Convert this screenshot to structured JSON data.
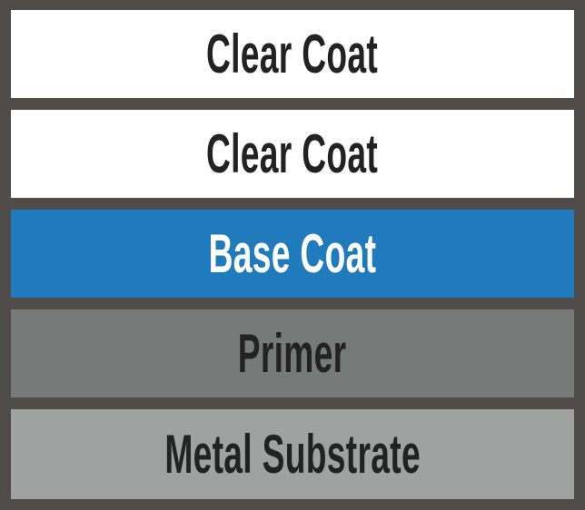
{
  "layers": [
    {
      "label": "Clear Coat",
      "bg": "#ffffff",
      "fg": "#222222"
    },
    {
      "label": "Clear Coat",
      "bg": "#ffffff",
      "fg": "#222222"
    },
    {
      "label": "Base Coat",
      "bg": "#1f7bbb",
      "fg": "#ffffff"
    },
    {
      "label": "Primer",
      "bg": "#767a79",
      "fg": "#222222"
    },
    {
      "label": "Metal Substrate",
      "bg": "#9fa2a1",
      "fg": "#222222"
    }
  ],
  "background": "#4f4c49"
}
